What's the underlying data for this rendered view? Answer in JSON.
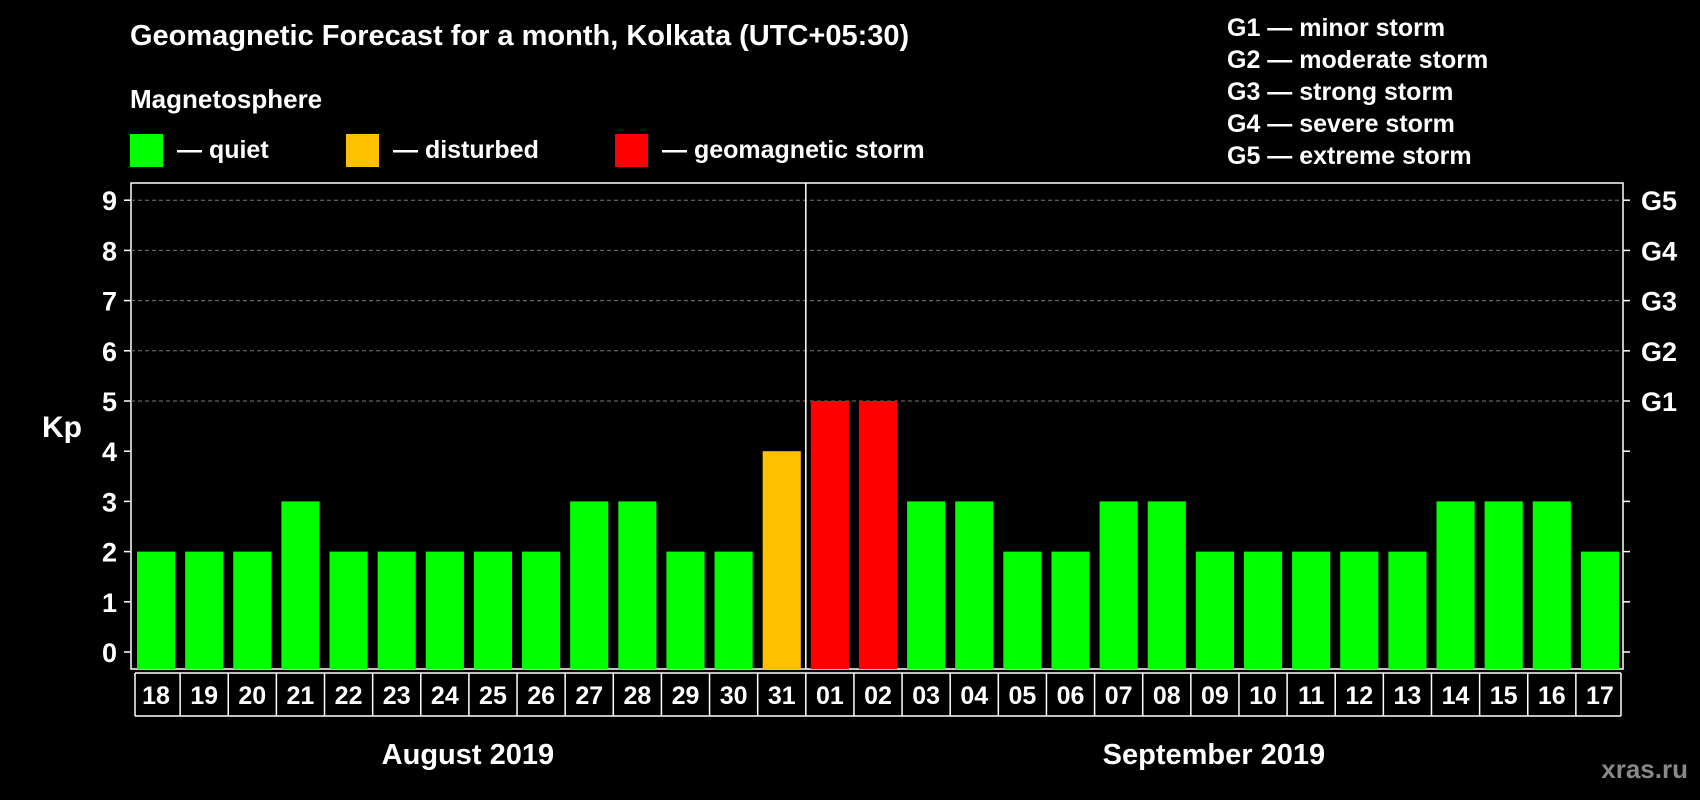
{
  "chart_data": {
    "type": "bar",
    "title": "Geomagnetic Forecast for a month, Kolkata (UTC+05:30)",
    "subtitle": "Magnetosphere",
    "ylabel": "Kp",
    "ylim": [
      0,
      9
    ],
    "yticks": [
      "0",
      "1",
      "2",
      "3",
      "4",
      "5",
      "6",
      "7",
      "8",
      "9"
    ],
    "right_axis": [
      {
        "kp": 5,
        "label": "G1"
      },
      {
        "kp": 6,
        "label": "G2"
      },
      {
        "kp": 7,
        "label": "G3"
      },
      {
        "kp": 8,
        "label": "G4"
      },
      {
        "kp": 9,
        "label": "G5"
      }
    ],
    "grid": "dashed horizontal at Kp 5-9",
    "categories": [
      "18",
      "19",
      "20",
      "21",
      "22",
      "23",
      "24",
      "25",
      "26",
      "27",
      "28",
      "29",
      "30",
      "31",
      "01",
      "02",
      "03",
      "04",
      "05",
      "06",
      "07",
      "08",
      "09",
      "10",
      "11",
      "12",
      "13",
      "14",
      "15",
      "16",
      "17"
    ],
    "values": [
      2,
      2,
      2,
      3,
      2,
      2,
      2,
      2,
      2,
      3,
      3,
      2,
      2,
      4,
      5,
      5,
      3,
      3,
      2,
      2,
      3,
      3,
      2,
      2,
      2,
      2,
      2,
      3,
      3,
      3,
      2
    ],
    "status": [
      "quiet",
      "quiet",
      "quiet",
      "quiet",
      "quiet",
      "quiet",
      "quiet",
      "quiet",
      "quiet",
      "quiet",
      "quiet",
      "quiet",
      "quiet",
      "disturbed",
      "storm",
      "storm",
      "quiet",
      "quiet",
      "quiet",
      "quiet",
      "quiet",
      "quiet",
      "quiet",
      "quiet",
      "quiet",
      "quiet",
      "quiet",
      "quiet",
      "quiet",
      "quiet",
      "quiet"
    ],
    "months": [
      {
        "label": "August 2019",
        "first": 0,
        "last": 13
      },
      {
        "label": "September 2019",
        "first": 14,
        "last": 30
      }
    ],
    "colors": {
      "quiet": "#00ff00",
      "disturbed": "#ffc000",
      "storm": "#ff0000",
      "background": "#000000"
    }
  },
  "legend": {
    "quiet": "— quiet",
    "disturbed": "— disturbed",
    "storm": "— geomagnetic storm"
  },
  "g_scale": [
    "G1 — minor storm",
    "G2 — moderate storm",
    "G3 — strong storm",
    "G4 — severe storm",
    "G5 — extreme storm"
  ],
  "watermark": "xras.ru"
}
